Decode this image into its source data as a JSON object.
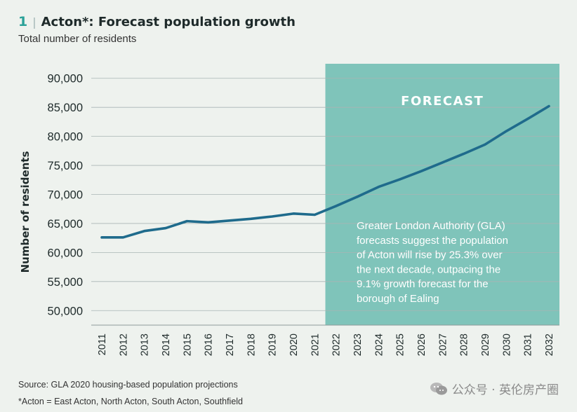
{
  "header": {
    "figure_number": "1",
    "title": "Acton*: Forecast population growth",
    "subtitle": "Total number of residents"
  },
  "chart_data": {
    "type": "line",
    "title": "Acton*: Forecast population growth",
    "subtitle": "Total number of residents",
    "xlabel": "",
    "ylabel": "Number of residents",
    "ylim": [
      47500,
      92500
    ],
    "y_ticks": [
      90000,
      85000,
      80000,
      75000,
      70000,
      65000,
      60000,
      55000,
      50000
    ],
    "y_tick_labels": [
      "90,000",
      "85,000",
      "80,000",
      "75,000",
      "70,000",
      "65,000",
      "60,000",
      "55,000",
      "50,000"
    ],
    "x_ticks": [
      "2011",
      "2012",
      "2013",
      "2014",
      "2015",
      "2016",
      "2017",
      "2018",
      "2019",
      "2020",
      "2021",
      "2022",
      "2023",
      "2024",
      "2025",
      "2026",
      "2027",
      "2028",
      "2029",
      "2030",
      "2031",
      "2032"
    ],
    "grid": "horizontal",
    "series": [
      {
        "color": "#1f6b8c",
        "points": [
          {
            "x": 2011,
            "y": 62600
          },
          {
            "x": 2012,
            "y": 62600
          },
          {
            "x": 2013,
            "y": 63700
          },
          {
            "x": 2014,
            "y": 64200
          },
          {
            "x": 2015,
            "y": 65400
          },
          {
            "x": 2016,
            "y": 65200
          },
          {
            "x": 2017,
            "y": 65500
          },
          {
            "x": 2018,
            "y": 65800
          },
          {
            "x": 2019,
            "y": 66200
          },
          {
            "x": 2020,
            "y": 66700
          },
          {
            "x": 2021,
            "y": 66500
          },
          {
            "x": 2022,
            "y": 68000
          },
          {
            "x": 2023,
            "y": 69600
          },
          {
            "x": 2024,
            "y": 71300
          },
          {
            "x": 2025,
            "y": 72600
          },
          {
            "x": 2026,
            "y": 74000
          },
          {
            "x": 2027,
            "y": 75500
          },
          {
            "x": 2028,
            "y": 77000
          },
          {
            "x": 2029,
            "y": 78600
          },
          {
            "x": 2030,
            "y": 80900
          },
          {
            "x": 2031,
            "y": 83000
          },
          {
            "x": 2032,
            "y": 85200
          }
        ]
      }
    ],
    "forecast_region": {
      "start": 2021.5,
      "label": "FORECAST",
      "color": "#7fc4ba",
      "annotation": [
        "Greater London Authority (GLA)",
        "forecasts suggest the population",
        "of Acton will rise by 25.3% over",
        "the next decade, outpacing the",
        "9.1% growth forecast for the",
        "borough of Ealing"
      ]
    }
  },
  "footer": {
    "source": "Source: GLA 2020 housing-based population projections",
    "footnote": "*Acton = East Acton, North Acton, South Acton, Southfield",
    "watermark": "公众号 · 英伦房产圈"
  }
}
